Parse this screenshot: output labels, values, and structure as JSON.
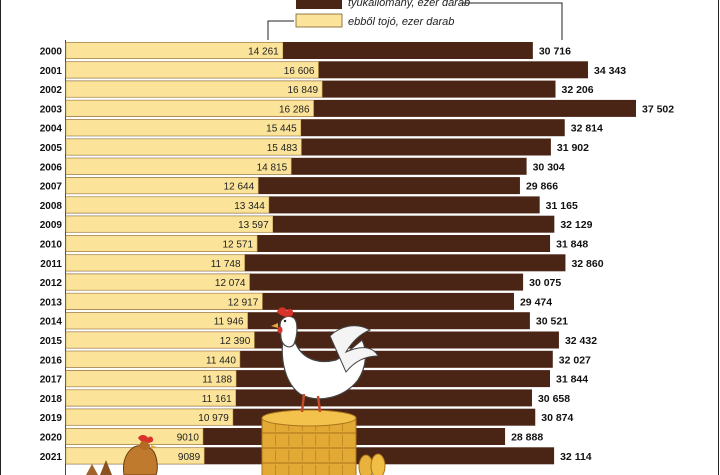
{
  "chart_data": {
    "type": "bar",
    "orientation": "horizontal",
    "layout": "overlapping",
    "categories": [
      "2000",
      "2001",
      "2002",
      "2003",
      "2004",
      "2005",
      "2006",
      "2007",
      "2008",
      "2009",
      "2010",
      "2011",
      "2012",
      "2013",
      "2014",
      "2015",
      "2016",
      "2017",
      "2018",
      "2019",
      "2020",
      "2021"
    ],
    "series": [
      {
        "name": "tyúkállomány, ezer darab",
        "color": "#4a2414",
        "values": [
          30716,
          34343,
          32206,
          37502,
          32814,
          31902,
          30304,
          29866,
          31165,
          32129,
          31848,
          32860,
          30075,
          29474,
          30521,
          32432,
          32027,
          31844,
          30658,
          30874,
          28888,
          32114
        ],
        "labels": [
          "30 716",
          "34 343",
          "32 206",
          "37 502",
          "32 814",
          "31 902",
          "30 304",
          "29 866",
          "31 165",
          "32 129",
          "31 848",
          "32 860",
          "30 075",
          "29 474",
          "30 521",
          "32 432",
          "32 027",
          "31 844",
          "30 658",
          "30 874",
          "28 888",
          "32 114"
        ]
      },
      {
        "name": "ebből tojó, ezer darab",
        "color": "#fbe49a",
        "values": [
          14261,
          16606,
          16849,
          16286,
          15445,
          15483,
          14815,
          12644,
          13344,
          13597,
          12571,
          11748,
          12074,
          12917,
          11946,
          12390,
          11440,
          11188,
          11161,
          10979,
          9010,
          9089
        ],
        "labels": [
          "14 261",
          "16 606",
          "16 849",
          "16 286",
          "15 445",
          "15 483",
          "14 815",
          "12 644",
          "13 344",
          "13 597",
          "12 571",
          "11 748",
          "12 074",
          "12 917",
          "11 946",
          "12 390",
          "11 440",
          "11 188",
          "11 161",
          "10 979",
          "9010",
          "9089"
        ]
      }
    ],
    "xlim": [
      0,
      37502
    ],
    "legend_position": "top-center"
  }
}
